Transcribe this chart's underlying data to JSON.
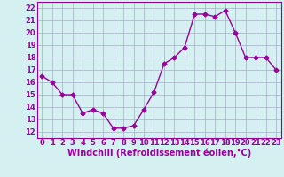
{
  "x": [
    0,
    1,
    2,
    3,
    4,
    5,
    6,
    7,
    8,
    9,
    10,
    11,
    12,
    13,
    14,
    15,
    16,
    17,
    18,
    19,
    20,
    21,
    22,
    23
  ],
  "y": [
    16.5,
    16.0,
    15.0,
    15.0,
    13.5,
    13.8,
    13.5,
    12.3,
    12.3,
    12.5,
    13.8,
    15.2,
    17.5,
    18.0,
    18.8,
    21.5,
    21.5,
    21.3,
    21.8,
    20.0,
    18.0,
    18.0,
    18.0,
    17.0
  ],
  "line_color": "#990099",
  "marker": "D",
  "markersize": 2.5,
  "linewidth": 1.0,
  "xlabel": "Windchill (Refroidissement éolien,°C)",
  "xlabel_fontsize": 7.0,
  "ylabel_ticks": [
    12,
    13,
    14,
    15,
    16,
    17,
    18,
    19,
    20,
    21,
    22
  ],
  "xticks": [
    0,
    1,
    2,
    3,
    4,
    5,
    6,
    7,
    8,
    9,
    10,
    11,
    12,
    13,
    14,
    15,
    16,
    17,
    18,
    19,
    20,
    21,
    22,
    23
  ],
  "ylim": [
    11.5,
    22.5
  ],
  "xlim": [
    -0.5,
    23.5
  ],
  "bg_color": "#d4f0f0",
  "grid_color": "#aaaacc",
  "tick_fontsize": 6.0,
  "text_color": "#990099"
}
